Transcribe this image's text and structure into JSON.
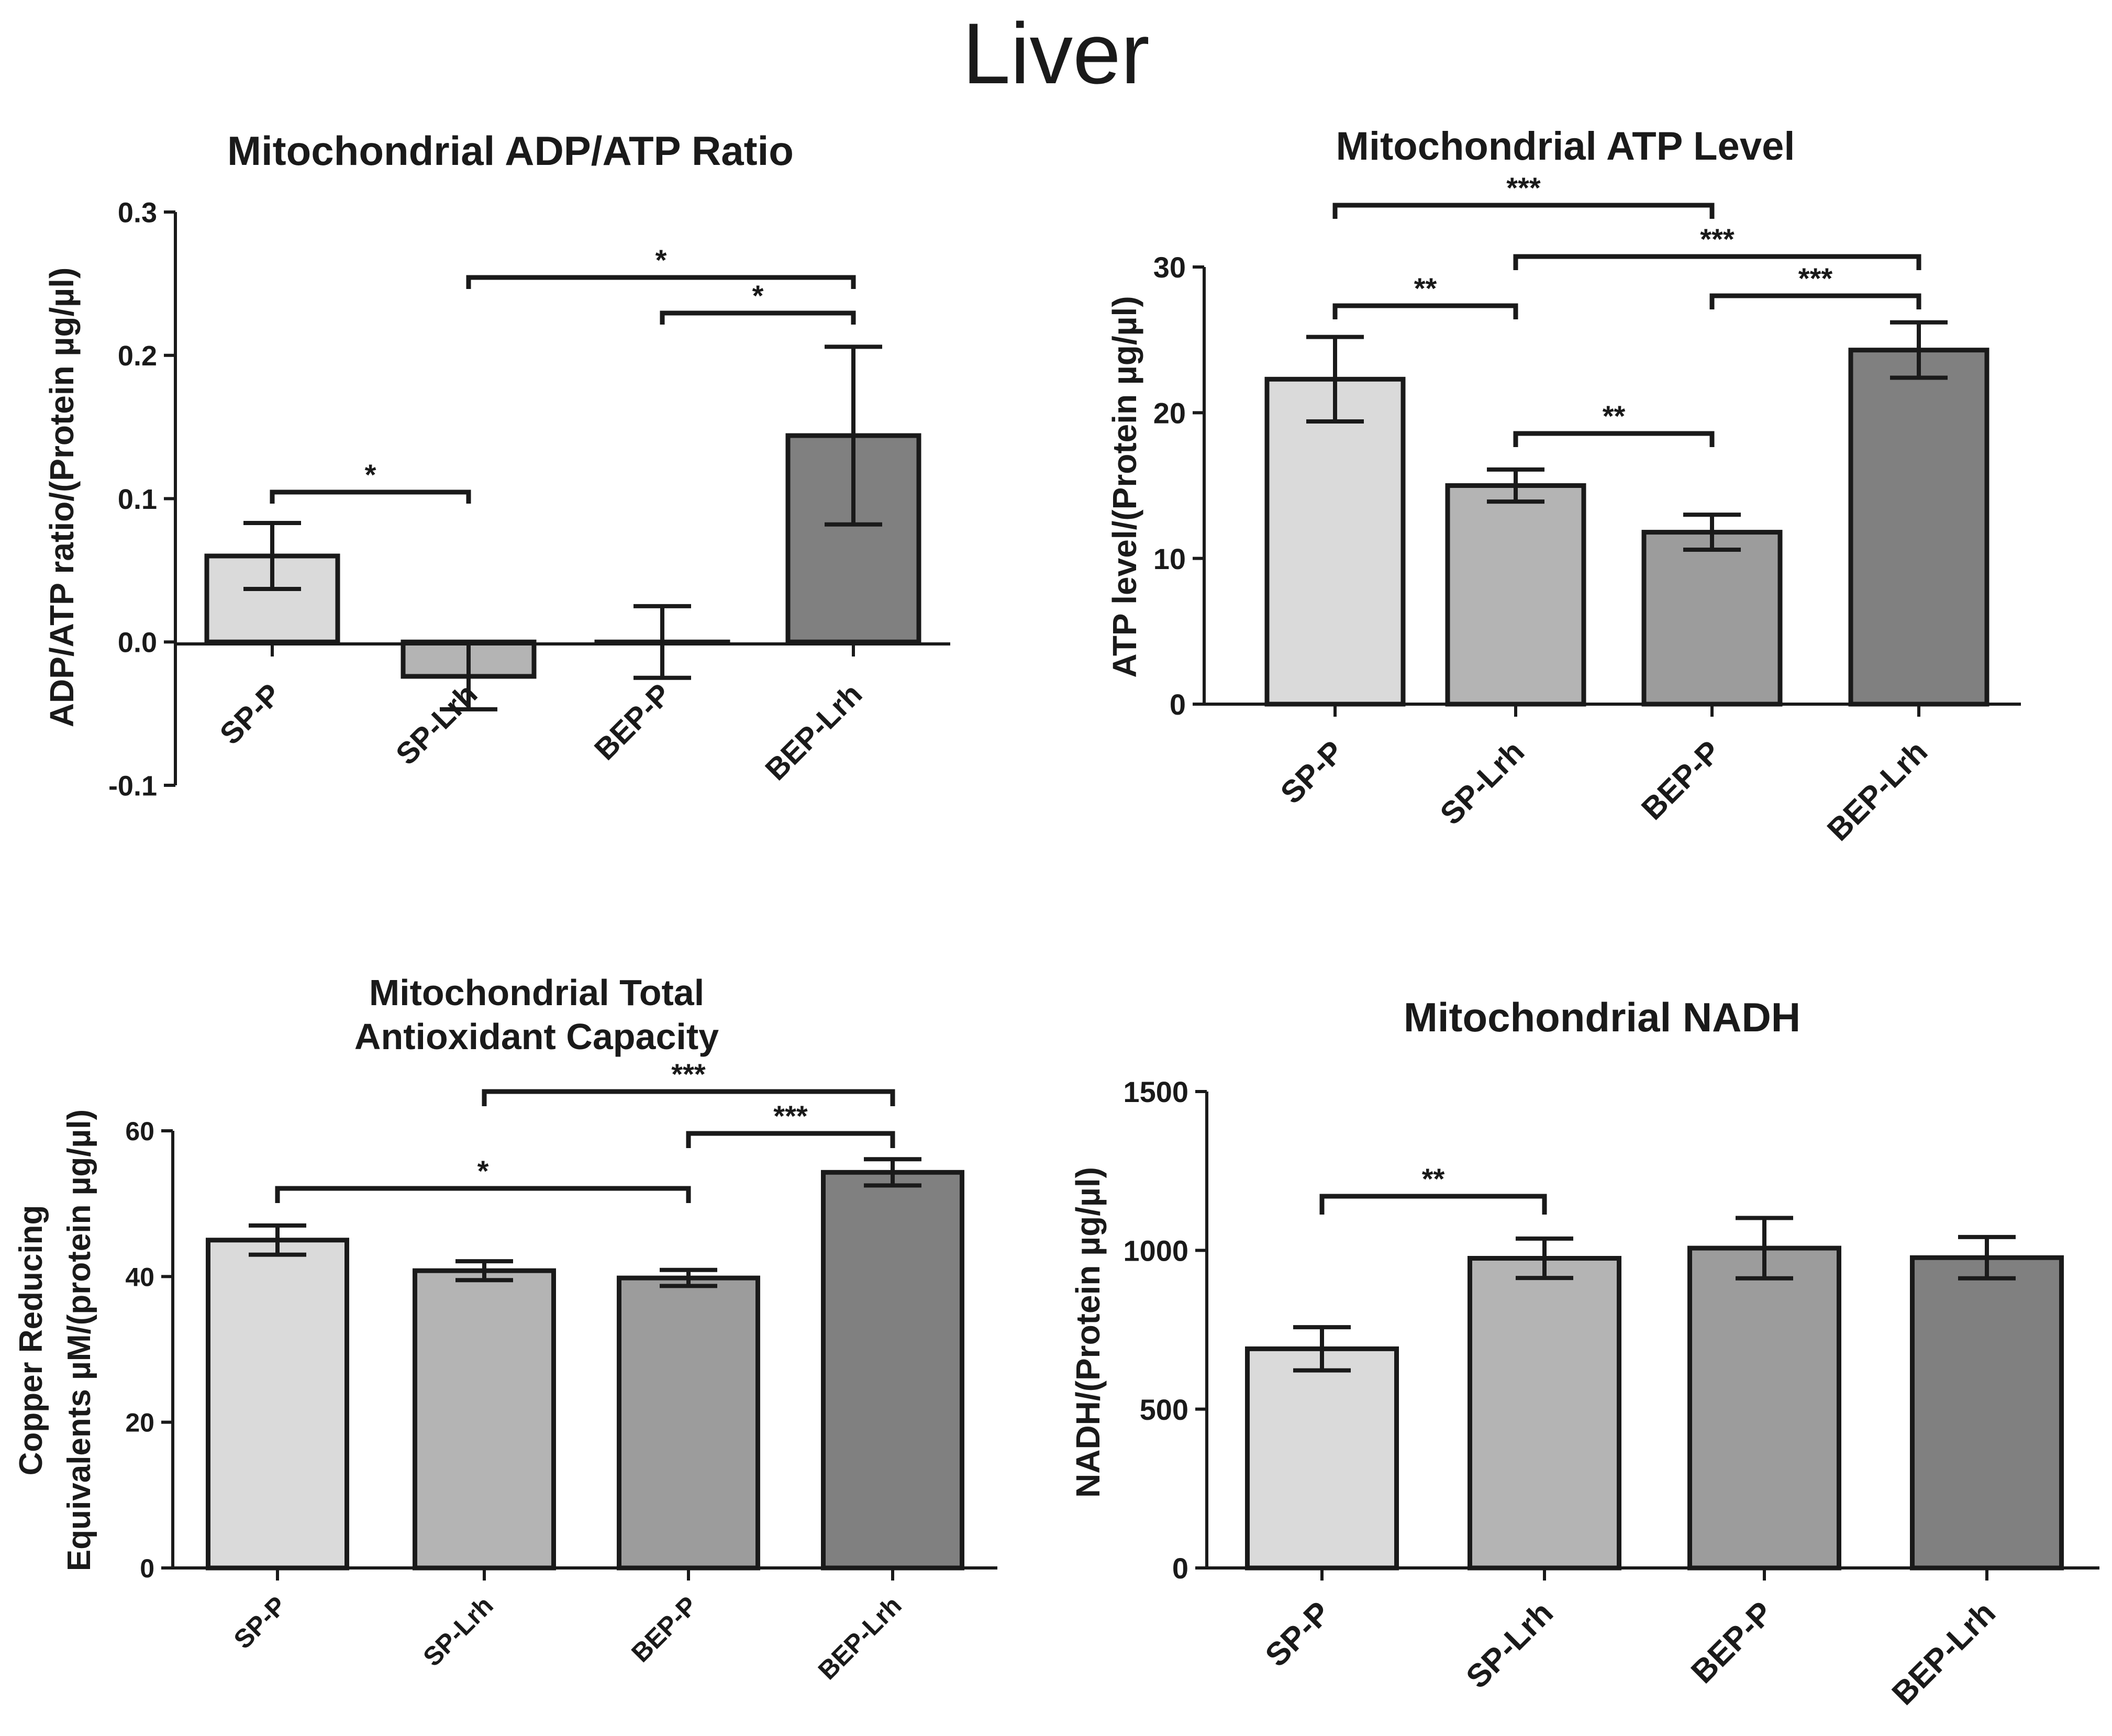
{
  "figure_title": "Liver",
  "colors": {
    "axis": "#1a1a1a",
    "bar_outline": "#1a1a1a",
    "bar_fills": [
      "#dadada",
      "#b4b4b4",
      "#9c9c9c",
      "#808080"
    ]
  },
  "chart_data": [
    {
      "id": "adp-atp",
      "type": "bar",
      "title": "Mitochondrial ADP/ATP Ratio",
      "ylabel": [
        "ADP/ATP ratio/(Protein  µg/µl)"
      ],
      "categories": [
        "SP-P",
        "SP-Lrh",
        "BEP-P",
        "BEP-Lrh"
      ],
      "values": [
        0.06,
        -0.024,
        0.0,
        0.144
      ],
      "errors": [
        0.023,
        0.023,
        0.025,
        0.062
      ],
      "ylim": [
        -0.1,
        0.3
      ],
      "yticks": [
        -0.1,
        0.0,
        0.1,
        0.2,
        0.3
      ],
      "ytick_labels": [
        "-0.1",
        "0.0",
        "0.1",
        "0.2",
        "0.3"
      ],
      "significance": [
        {
          "from": "SP-P",
          "to": "SP-Lrh",
          "label": "*"
        },
        {
          "from": "SP-Lrh",
          "to": "BEP-Lrh",
          "label": "*"
        },
        {
          "from": "BEP-P",
          "to": "BEP-Lrh",
          "label": "*"
        }
      ]
    },
    {
      "id": "atp-level",
      "type": "bar",
      "title": "Mitochondrial ATP Level",
      "ylabel": [
        "ATP level/(Protein  µg/µl)"
      ],
      "categories": [
        "SP-P",
        "SP-Lrh",
        "BEP-P",
        "BEP-Lrh"
      ],
      "values": [
        22.3,
        15.0,
        11.8,
        24.3
      ],
      "errors": [
        2.9,
        1.1,
        1.2,
        1.9
      ],
      "ylim": [
        0,
        30
      ],
      "yticks": [
        0,
        10,
        20,
        30
      ],
      "ytick_labels": [
        "0",
        "10",
        "20",
        "30"
      ],
      "significance": [
        {
          "from": "SP-P",
          "to": "BEP-P",
          "label": "***"
        },
        {
          "from": "SP-Lrh",
          "to": "BEP-Lrh",
          "label": "***"
        },
        {
          "from": "BEP-P",
          "to": "BEP-Lrh",
          "label": "***"
        },
        {
          "from": "SP-P",
          "to": "SP-Lrh",
          "label": "**"
        },
        {
          "from": "SP-Lrh",
          "to": "BEP-P",
          "label": "**"
        }
      ]
    },
    {
      "id": "tac",
      "type": "bar",
      "title": [
        "Mitochondrial Total",
        "Antioxidant Capacity"
      ],
      "ylabel": [
        "Copper Reducing",
        "Equivalents µM/(protein µg/µl)"
      ],
      "categories": [
        "SP-P",
        "SP-Lrh",
        "BEP-P",
        "BEP-Lrh"
      ],
      "values": [
        45.0,
        40.8,
        39.8,
        54.3
      ],
      "errors": [
        2.0,
        1.3,
        1.1,
        1.8
      ],
      "ylim": [
        0,
        60
      ],
      "yticks": [
        0,
        20,
        40,
        60
      ],
      "ytick_labels": [
        "0",
        "20",
        "40",
        "60"
      ],
      "significance": [
        {
          "from": "SP-Lrh",
          "to": "BEP-Lrh",
          "label": "***"
        },
        {
          "from": "BEP-P",
          "to": "BEP-Lrh",
          "label": "***"
        },
        {
          "from": "SP-P",
          "to": "BEP-P",
          "label": "*"
        }
      ]
    },
    {
      "id": "nadh",
      "type": "bar",
      "title": "Mitochondrial NADH",
      "ylabel": [
        "NADH/(Protein  µg/µl)"
      ],
      "categories": [
        "SP-P",
        "SP-Lrh",
        "BEP-P",
        "BEP-Lrh"
      ],
      "values": [
        690,
        975,
        1007,
        977
      ],
      "errors": [
        68,
        62,
        95,
        65
      ],
      "ylim": [
        0,
        1500
      ],
      "yticks": [
        0,
        500,
        1000,
        1500
      ],
      "ytick_labels": [
        "0",
        "500",
        "1000",
        "1500"
      ],
      "significance": [
        {
          "from": "SP-P",
          "to": "SP-Lrh",
          "label": "**"
        }
      ]
    }
  ]
}
